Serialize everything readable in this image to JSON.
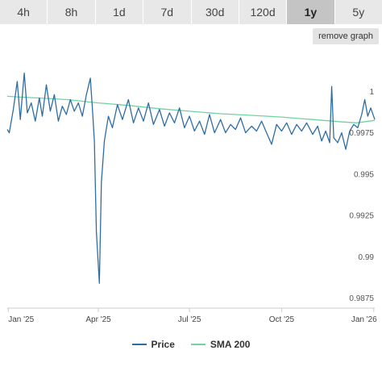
{
  "tabs": [
    {
      "label": "4h",
      "active": false
    },
    {
      "label": "8h",
      "active": false
    },
    {
      "label": "1d",
      "active": false
    },
    {
      "label": "7d",
      "active": false
    },
    {
      "label": "30d",
      "active": false
    },
    {
      "label": "120d",
      "active": false
    },
    {
      "label": "1y",
      "active": true
    },
    {
      "label": "5y",
      "active": false
    }
  ],
  "remove_graph_label": "remove graph",
  "colors": {
    "price": "#2e6da4",
    "sma": "#6fd4a0",
    "axis": "#cccccc",
    "tab_bg": "#e8e8e8",
    "tab_active_bg": "#c4c4c4"
  },
  "chart_data": {
    "type": "line",
    "grid": false,
    "x_axis": {
      "range": [
        "2024-12-31",
        "2026-01-02"
      ],
      "ticks": [
        {
          "date": "2025-01-01",
          "label": "Jan '25"
        },
        {
          "date": "2025-04-01",
          "label": "Apr '25"
        },
        {
          "date": "2025-07-01",
          "label": "Jul '25"
        },
        {
          "date": "2025-10-01",
          "label": "Oct '25"
        },
        {
          "date": "2026-01-01",
          "label": "Jan '26"
        }
      ]
    },
    "y_axis": {
      "position": "right",
      "range": [
        0.9869,
        1.0025
      ],
      "ticks": [
        {
          "value": 1.0,
          "label": "1"
        },
        {
          "value": 0.9975,
          "label": "0.9975"
        },
        {
          "value": 0.995,
          "label": "0.995"
        },
        {
          "value": 0.9925,
          "label": "0.9925"
        },
        {
          "value": 0.99,
          "label": "0.99"
        },
        {
          "value": 0.9875,
          "label": "0.9875"
        }
      ]
    },
    "legend_position": "bottom-center",
    "series": [
      {
        "name": "Price",
        "points": [
          [
            "2024-12-31",
            0.9977
          ],
          [
            "2025-01-02",
            0.9975
          ],
          [
            "2025-01-06",
            0.9989
          ],
          [
            "2025-01-10",
            1.0006
          ],
          [
            "2025-01-13",
            0.9983
          ],
          [
            "2025-01-17",
            1.0011
          ],
          [
            "2025-01-20",
            0.9987
          ],
          [
            "2025-01-24",
            0.9993
          ],
          [
            "2025-01-28",
            0.9982
          ],
          [
            "2025-02-01",
            0.9996
          ],
          [
            "2025-02-04",
            0.9985
          ],
          [
            "2025-02-08",
            1.0004
          ],
          [
            "2025-02-12",
            0.9988
          ],
          [
            "2025-02-16",
            0.9998
          ],
          [
            "2025-02-20",
            0.9982
          ],
          [
            "2025-02-24",
            0.9991
          ],
          [
            "2025-02-28",
            0.9986
          ],
          [
            "2025-03-04",
            0.9995
          ],
          [
            "2025-03-08",
            0.9988
          ],
          [
            "2025-03-12",
            0.9993
          ],
          [
            "2025-03-16",
            0.9985
          ],
          [
            "2025-03-20",
            0.9998
          ],
          [
            "2025-03-24",
            1.0008
          ],
          [
            "2025-03-26",
            0.999
          ],
          [
            "2025-03-28",
            0.997
          ],
          [
            "2025-03-30",
            0.9915
          ],
          [
            "2025-04-02",
            0.9884
          ],
          [
            "2025-04-04",
            0.9945
          ],
          [
            "2025-04-07",
            0.997
          ],
          [
            "2025-04-11",
            0.9985
          ],
          [
            "2025-04-15",
            0.9978
          ],
          [
            "2025-04-20",
            0.9992
          ],
          [
            "2025-04-25",
            0.9983
          ],
          [
            "2025-05-01",
            0.9995
          ],
          [
            "2025-05-06",
            0.9981
          ],
          [
            "2025-05-11",
            0.999
          ],
          [
            "2025-05-16",
            0.9982
          ],
          [
            "2025-05-21",
            0.9993
          ],
          [
            "2025-05-26",
            0.998
          ],
          [
            "2025-06-01",
            0.9989
          ],
          [
            "2025-06-06",
            0.9979
          ],
          [
            "2025-06-11",
            0.9987
          ],
          [
            "2025-06-16",
            0.9981
          ],
          [
            "2025-06-21",
            0.999
          ],
          [
            "2025-06-26",
            0.9978
          ],
          [
            "2025-07-01",
            0.9985
          ],
          [
            "2025-07-06",
            0.9976
          ],
          [
            "2025-07-11",
            0.9982
          ],
          [
            "2025-07-16",
            0.9974
          ],
          [
            "2025-07-21",
            0.9986
          ],
          [
            "2025-07-26",
            0.9975
          ],
          [
            "2025-08-01",
            0.9983
          ],
          [
            "2025-08-06",
            0.9975
          ],
          [
            "2025-08-11",
            0.998
          ],
          [
            "2025-08-16",
            0.9977
          ],
          [
            "2025-08-21",
            0.9984
          ],
          [
            "2025-08-26",
            0.9975
          ],
          [
            "2025-09-01",
            0.9979
          ],
          [
            "2025-09-06",
            0.9976
          ],
          [
            "2025-09-11",
            0.9982
          ],
          [
            "2025-09-16",
            0.9975
          ],
          [
            "2025-09-21",
            0.9968
          ],
          [
            "2025-09-26",
            0.998
          ],
          [
            "2025-10-01",
            0.9976
          ],
          [
            "2025-10-06",
            0.9981
          ],
          [
            "2025-10-11",
            0.9974
          ],
          [
            "2025-10-16",
            0.998
          ],
          [
            "2025-10-21",
            0.9976
          ],
          [
            "2025-10-26",
            0.9981
          ],
          [
            "2025-11-01",
            0.9974
          ],
          [
            "2025-11-06",
            0.9979
          ],
          [
            "2025-11-10",
            0.997
          ],
          [
            "2025-11-14",
            0.9976
          ],
          [
            "2025-11-18",
            0.9969
          ],
          [
            "2025-11-20",
            1.0003
          ],
          [
            "2025-11-22",
            0.9972
          ],
          [
            "2025-11-26",
            0.9969
          ],
          [
            "2025-11-30",
            0.9975
          ],
          [
            "2025-12-04",
            0.9965
          ],
          [
            "2025-12-08",
            0.9976
          ],
          [
            "2025-12-12",
            0.998
          ],
          [
            "2025-12-16",
            0.9978
          ],
          [
            "2025-12-20",
            0.9986
          ],
          [
            "2025-12-23",
            0.9995
          ],
          [
            "2025-12-26",
            0.9985
          ],
          [
            "2025-12-29",
            0.999
          ],
          [
            "2026-01-02",
            0.9983
          ]
        ]
      },
      {
        "name": "SMA 200",
        "points": [
          [
            "2024-12-31",
            0.9997
          ],
          [
            "2025-01-15",
            0.99965
          ],
          [
            "2025-02-01",
            0.9996
          ],
          [
            "2025-03-01",
            0.9995
          ],
          [
            "2025-04-01",
            0.9993
          ],
          [
            "2025-05-01",
            0.99915
          ],
          [
            "2025-06-01",
            0.99895
          ],
          [
            "2025-07-01",
            0.9988
          ],
          [
            "2025-08-01",
            0.99865
          ],
          [
            "2025-09-01",
            0.99855
          ],
          [
            "2025-10-01",
            0.99845
          ],
          [
            "2025-11-01",
            0.9983
          ],
          [
            "2025-12-01",
            0.99815
          ],
          [
            "2025-12-15",
            0.9981
          ],
          [
            "2026-01-02",
            0.99825
          ]
        ]
      }
    ]
  },
  "legend": {
    "price_label": "Price",
    "sma_label": "SMA 200"
  }
}
